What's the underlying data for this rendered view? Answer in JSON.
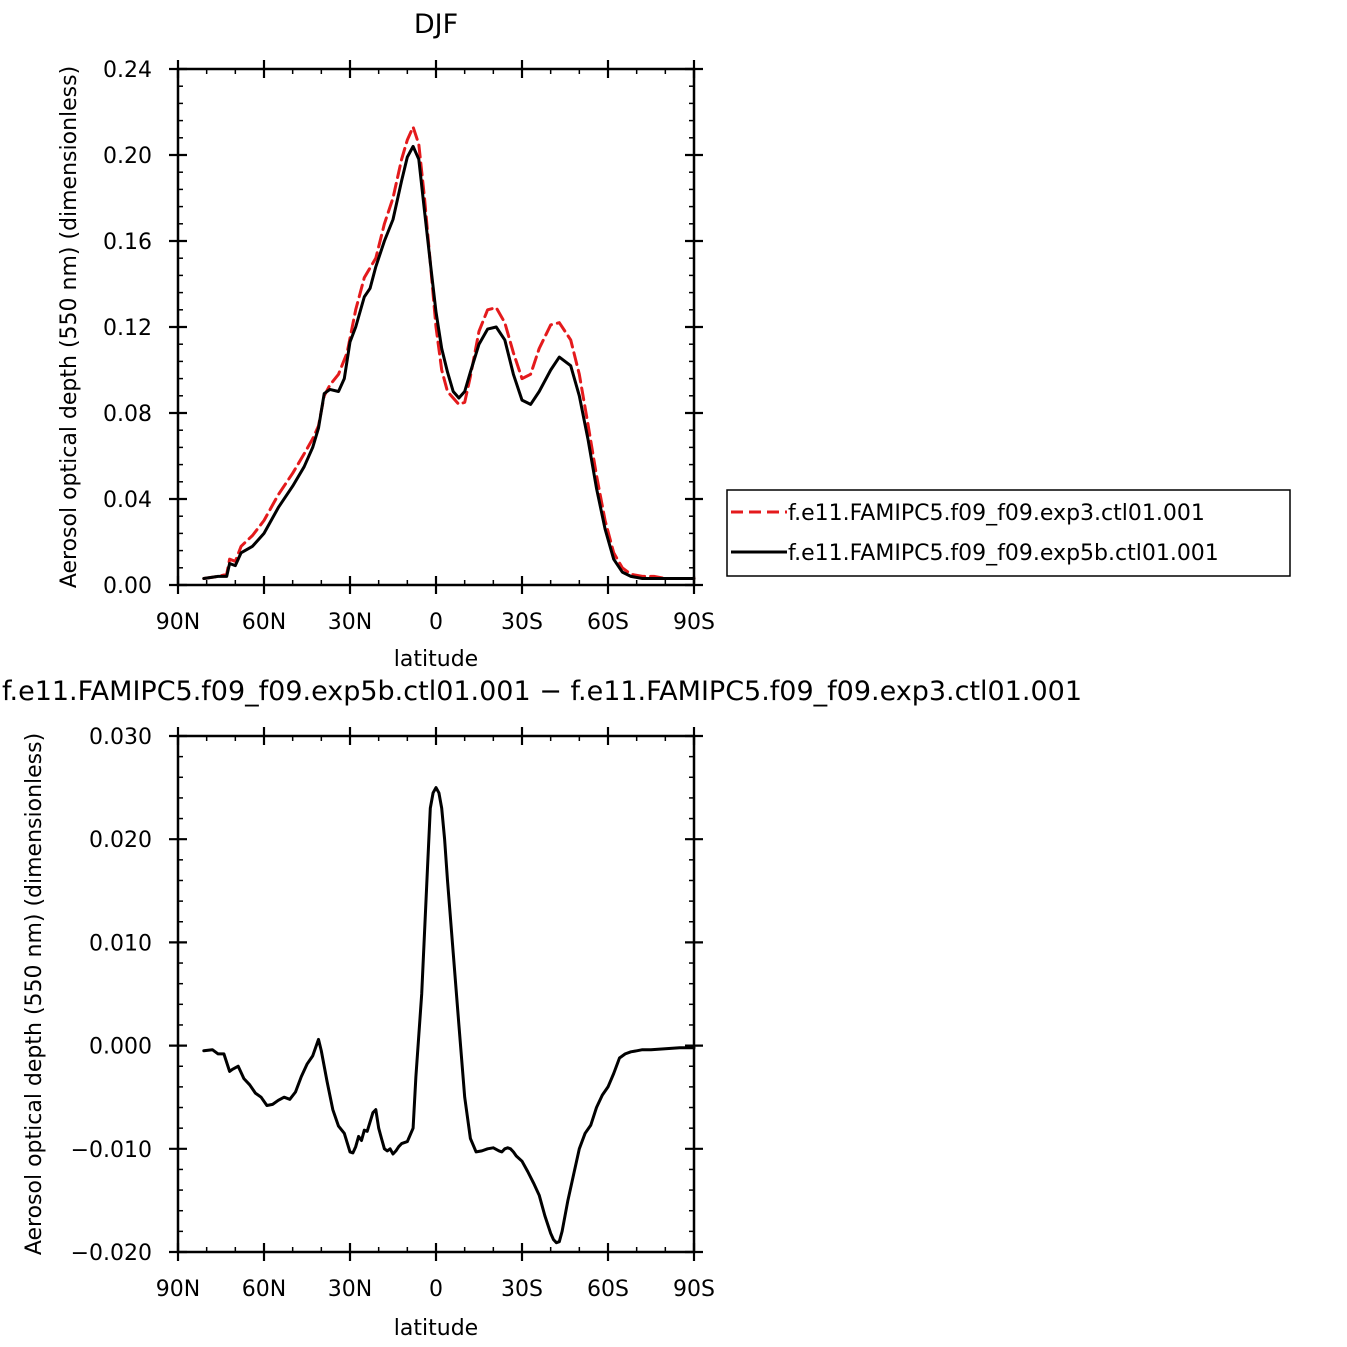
{
  "chart_data": [
    {
      "type": "line",
      "title": "DJF",
      "xlabel": "latitude",
      "ylabel": "Aerosol optical depth (550 nm) (dimensionless)",
      "x_ticks": [
        "90N",
        "60N",
        "30N",
        "0",
        "30S",
        "60S",
        "90S"
      ],
      "y_ticks": [
        "0.00",
        "0.04",
        "0.08",
        "0.12",
        "0.16",
        "0.20",
        "0.24"
      ],
      "xlim": [
        90,
        -90
      ],
      "ylim": [
        0,
        0.24
      ],
      "legend_position": "right",
      "grid": false,
      "series": [
        {
          "name": "f.e11.FAMIPC5.f09_f09.exp3.ctl01.001",
          "color": "#e41a1c",
          "dash": "dashed",
          "x": [
            81,
            76,
            73,
            72,
            70,
            68,
            64,
            60,
            55,
            50,
            46,
            43,
            41,
            39,
            37,
            34,
            31,
            28,
            25,
            21,
            18,
            15,
            12,
            10,
            8,
            6,
            4,
            2,
            0,
            -2,
            -4,
            -6,
            -8,
            -10,
            -12,
            -15,
            -18,
            -21,
            -24,
            -27,
            -30,
            -33,
            -36,
            -40,
            -43,
            -47,
            -50,
            -53,
            -56,
            -59,
            -62,
            -65,
            -68,
            -72,
            -76,
            -80,
            -85,
            -90
          ],
          "values": [
            0.003,
            0.004,
            0.005,
            0.012,
            0.011,
            0.018,
            0.023,
            0.03,
            0.042,
            0.052,
            0.061,
            0.068,
            0.074,
            0.088,
            0.093,
            0.098,
            0.108,
            0.128,
            0.143,
            0.152,
            0.168,
            0.18,
            0.198,
            0.207,
            0.213,
            0.205,
            0.18,
            0.15,
            0.12,
            0.1,
            0.09,
            0.087,
            0.084,
            0.085,
            0.097,
            0.118,
            0.128,
            0.129,
            0.122,
            0.108,
            0.096,
            0.098,
            0.11,
            0.121,
            0.122,
            0.114,
            0.098,
            0.075,
            0.051,
            0.03,
            0.015,
            0.008,
            0.005,
            0.004,
            0.004,
            0.003,
            0.003,
            0.003
          ]
        },
        {
          "name": "f.e11.FAMIPC5.f09_f09.exp5b.ctl01.001",
          "color": "#000000",
          "dash": "solid",
          "x": [
            81,
            76,
            73,
            72,
            70,
            68,
            64,
            60,
            55,
            50,
            46,
            43,
            41,
            39,
            37,
            34,
            32,
            30,
            28,
            25,
            23,
            21,
            18,
            15,
            12,
            10,
            8,
            6,
            4,
            2,
            0,
            -2,
            -4,
            -6,
            -8,
            -10,
            -12,
            -15,
            -18,
            -21,
            -24,
            -27,
            -30,
            -33,
            -36,
            -40,
            -43,
            -47,
            -50,
            -53,
            -56,
            -59,
            -62,
            -65,
            -68,
            -72,
            -76,
            -80,
            -85,
            -90
          ],
          "values": [
            0.003,
            0.004,
            0.004,
            0.01,
            0.009,
            0.015,
            0.018,
            0.024,
            0.036,
            0.046,
            0.055,
            0.064,
            0.073,
            0.089,
            0.091,
            0.09,
            0.096,
            0.113,
            0.12,
            0.134,
            0.138,
            0.148,
            0.16,
            0.17,
            0.188,
            0.199,
            0.204,
            0.198,
            0.174,
            0.15,
            0.127,
            0.11,
            0.099,
            0.09,
            0.087,
            0.09,
            0.099,
            0.112,
            0.119,
            0.12,
            0.114,
            0.098,
            0.086,
            0.084,
            0.09,
            0.1,
            0.106,
            0.102,
            0.088,
            0.068,
            0.045,
            0.026,
            0.012,
            0.006,
            0.004,
            0.003,
            0.003,
            0.003,
            0.003,
            0.003
          ]
        }
      ]
    },
    {
      "type": "line",
      "title": "f.e11.FAMIPC5.f09_f09.exp5b.ctl01.001 − f.e11.FAMIPC5.f09_f09.exp3.ctl01.001",
      "xlabel": "latitude",
      "ylabel": "Aerosol optical depth (550 nm) (dimensionless)",
      "x_ticks": [
        "90N",
        "60N",
        "30N",
        "0",
        "30S",
        "60S",
        "90S"
      ],
      "y_ticks": [
        "−0.020",
        "−0.010",
        "0.000",
        "0.010",
        "0.020",
        "0.030"
      ],
      "xlim": [
        90,
        -90
      ],
      "ylim": [
        -0.02,
        0.03
      ],
      "grid": false,
      "series": [
        {
          "color": "#000000",
          "dash": "solid",
          "x": [
            81,
            78,
            76,
            74,
            72,
            71,
            69,
            67,
            65,
            63,
            61,
            59,
            57,
            55,
            53,
            51,
            49,
            47,
            45,
            43,
            41,
            40,
            38,
            36,
            34,
            32,
            30,
            29,
            28,
            27,
            26,
            25,
            24,
            22,
            21,
            20,
            19,
            18,
            17,
            16,
            15,
            14,
            13,
            12,
            10,
            8,
            7,
            5,
            3,
            2,
            1,
            0,
            -1,
            -2,
            -3,
            -4,
            -6,
            -8,
            -10,
            -12,
            -14,
            -16,
            -18,
            -20,
            -22,
            -23,
            -24,
            -25,
            -26,
            -27,
            -28,
            -30,
            -32,
            -34,
            -36,
            -38,
            -40,
            -41,
            -42,
            -43,
            -44,
            -45,
            -46,
            -48,
            -50,
            -52,
            -54,
            -56,
            -58,
            -60,
            -62,
            -64,
            -66,
            -68,
            -70,
            -72,
            -75,
            -80,
            -85,
            -90
          ],
          "values": [
            -0.0005,
            -0.0004,
            -0.0008,
            -0.0008,
            -0.0025,
            -0.0023,
            -0.002,
            -0.0032,
            -0.0038,
            -0.0046,
            -0.005,
            -0.0058,
            -0.0057,
            -0.0053,
            -0.005,
            -0.0052,
            -0.0045,
            -0.003,
            -0.0018,
            -0.001,
            0.0006,
            -0.0005,
            -0.0035,
            -0.0062,
            -0.0078,
            -0.0085,
            -0.0103,
            -0.0104,
            -0.0098,
            -0.0088,
            -0.0092,
            -0.0082,
            -0.0083,
            -0.0065,
            -0.0062,
            -0.008,
            -0.009,
            -0.01,
            -0.0102,
            -0.01,
            -0.0105,
            -0.0102,
            -0.0098,
            -0.0095,
            -0.0093,
            -0.008,
            -0.003,
            0.005,
            0.017,
            0.023,
            0.0245,
            0.025,
            0.0245,
            0.023,
            0.02,
            0.016,
            0.009,
            0.002,
            -0.005,
            -0.009,
            -0.0103,
            -0.0102,
            -0.01,
            -0.0099,
            -0.0102,
            -0.0103,
            -0.01,
            -0.0099,
            -0.01,
            -0.0103,
            -0.0107,
            -0.0112,
            -0.0122,
            -0.0133,
            -0.0145,
            -0.0165,
            -0.0182,
            -0.0188,
            -0.0191,
            -0.019,
            -0.018,
            -0.0165,
            -0.015,
            -0.0125,
            -0.01,
            -0.0085,
            -0.0077,
            -0.006,
            -0.0048,
            -0.004,
            -0.0027,
            -0.0012,
            -0.0008,
            -0.0006,
            -0.0005,
            -0.0004,
            -0.0004,
            -0.0003,
            -0.0002,
            -0.0002
          ]
        }
      ]
    }
  ]
}
